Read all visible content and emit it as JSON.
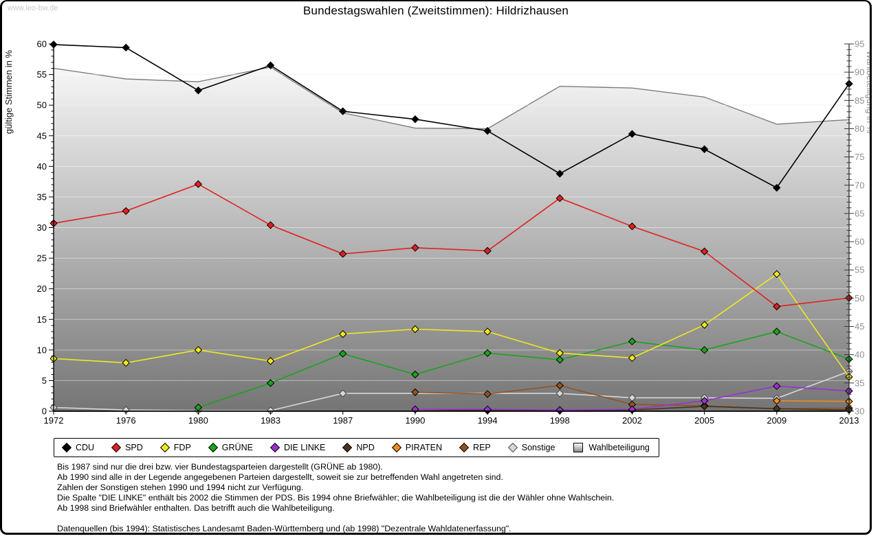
{
  "watermark": "www.leo-bw.de",
  "title": "Bundestagswahlen (Zweitstimmen): Hildrizhausen",
  "chart_data": {
    "type": "line",
    "x": [
      1972,
      1976,
      1980,
      1983,
      1987,
      1990,
      1994,
      1998,
      2002,
      2005,
      2009,
      2013
    ],
    "left_axis": {
      "label": "gültige Stimmen in %",
      "min": 0,
      "max": 60,
      "major_step": 5,
      "minor_step": 1
    },
    "right_axis": {
      "label": "Wahlbeteiligung in %",
      "min": 30,
      "max": 95,
      "major_step": 5,
      "minor_step": 1
    },
    "grid": "horizontal",
    "legend_position": "bottom",
    "series": [
      {
        "name": "CDU",
        "axis": "left",
        "kind": "line",
        "color": "#000000",
        "values": [
          59.9,
          59.4,
          52.4,
          56.5,
          49.0,
          47.7,
          45.8,
          38.8,
          45.3,
          42.8,
          36.5,
          53.5
        ]
      },
      {
        "name": "SPD",
        "axis": "left",
        "kind": "line",
        "color": "#e02020",
        "values": [
          30.7,
          32.7,
          37.1,
          30.4,
          25.7,
          26.7,
          26.2,
          34.8,
          30.2,
          26.1,
          17.1,
          18.5
        ]
      },
      {
        "name": "FDP",
        "axis": "left",
        "kind": "line",
        "color": "#f0e81e",
        "values": [
          8.6,
          7.9,
          10.0,
          8.2,
          12.6,
          13.4,
          13.0,
          9.5,
          8.7,
          14.1,
          22.4,
          5.6
        ]
      },
      {
        "name": "GRÜNE",
        "axis": "left",
        "kind": "line",
        "color": "#1ca21c",
        "values": [
          null,
          null,
          0.6,
          4.6,
          9.4,
          6.0,
          9.5,
          8.4,
          11.4,
          10.0,
          13.0,
          8.5
        ]
      },
      {
        "name": "DIE LINKE",
        "axis": "left",
        "kind": "line",
        "color": "#9b30d0",
        "values": [
          null,
          null,
          null,
          null,
          null,
          0.3,
          0.3,
          0.2,
          0.3,
          1.7,
          4.1,
          3.3
        ]
      },
      {
        "name": "NPD",
        "axis": "left",
        "kind": "line",
        "color": "#4a3420",
        "values": [
          null,
          null,
          null,
          null,
          null,
          0.3,
          0.1,
          0.1,
          0.2,
          0.8,
          0.4,
          0.2
        ]
      },
      {
        "name": "PIRATEN",
        "axis": "left",
        "kind": "line",
        "color": "#ef8c1f",
        "values": [
          null,
          null,
          null,
          null,
          null,
          null,
          null,
          null,
          null,
          null,
          1.7,
          1.6
        ]
      },
      {
        "name": "REP",
        "axis": "left",
        "kind": "line",
        "color": "#96521f",
        "values": [
          null,
          null,
          null,
          null,
          null,
          3.1,
          2.8,
          4.2,
          1.1,
          0.9,
          0.4,
          0.5
        ]
      },
      {
        "name": "Sonstige",
        "axis": "left",
        "kind": "line",
        "color": "#d8d8d8",
        "values": [
          0.6,
          0.2,
          0.1,
          0.1,
          2.9,
          null,
          null,
          2.9,
          2.2,
          2.2,
          2.1,
          6.5
        ]
      },
      {
        "name": "Wahlbeteiligung",
        "axis": "right",
        "kind": "area",
        "color": "#7a7a7a",
        "fill_top": "#ffffff",
        "fill_bottom": "#757575",
        "values": [
          90.7,
          88.8,
          88.3,
          90.9,
          82.8,
          80.1,
          80.0,
          87.5,
          87.2,
          85.6,
          80.8,
          81.6
        ]
      }
    ]
  },
  "notes": [
    "Bis 1987 sind nur die drei bzw. vier Bundestagsparteien dargestellt (GRÜNE ab 1980).",
    "Ab 1990 sind alle in der Legende angegebenen Parteien dargestellt, soweit sie zur betreffenden Wahl angetreten sind.",
    "Zahlen der Sonstigen stehen 1990 und 1994 nicht zur Verfügung.",
    "Die Spalte \"DIE LINKE\" enthält bis 2002 die Stimmen der PDS. Bis 1994 ohne Briefwähler; die Wahlbeteiligung ist die der Wähler ohne Wahlschein.",
    "Ab 1998 sind Briefwähler enthalten. Das betrifft auch die Wahlbeteiligung."
  ],
  "source": "Datenquellen (bis 1994): Statistisches Landesamt Baden-Württemberg und (ab 1998) \"Dezentrale Wahldatenerfassung\"."
}
